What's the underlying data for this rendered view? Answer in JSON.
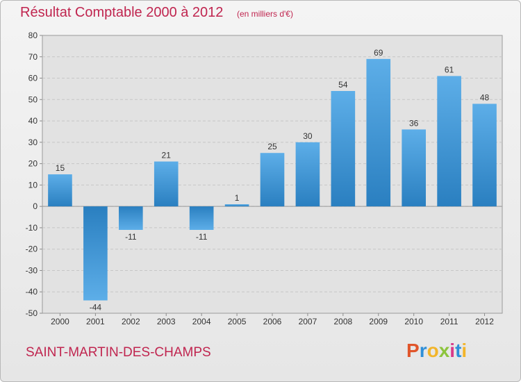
{
  "header": {
    "title": "Résultat Comptable 2000 à 2012",
    "subtitle": "(en milliers d'€)"
  },
  "footer": {
    "commune": "SAINT-MARTIN-DES-CHAMPS",
    "logo_text": "Proxiti",
    "logo_colors": [
      "#e0552a",
      "#2e8fd8",
      "#f2b52a",
      "#8cc43c",
      "#d83a8a"
    ]
  },
  "chart_data": {
    "type": "bar",
    "title": "Résultat Comptable 2000 à 2012",
    "subtitle": "(en milliers d'€)",
    "xlabel": "",
    "ylabel": "",
    "categories": [
      "2000",
      "2001",
      "2002",
      "2003",
      "2004",
      "2005",
      "2006",
      "2007",
      "2008",
      "2009",
      "2010",
      "2011",
      "2012"
    ],
    "values": [
      15,
      -44,
      -11,
      21,
      -11,
      1,
      25,
      30,
      54,
      69,
      36,
      61,
      48
    ],
    "data_labels": [
      "15",
      "-44",
      "-11",
      "21",
      "-11",
      "1",
      "25",
      "30",
      "54",
      "69",
      "36",
      "61",
      "48"
    ],
    "ylim": [
      -50,
      80
    ],
    "yticks": [
      80,
      70,
      60,
      50,
      40,
      30,
      20,
      10,
      0,
      -10,
      -20,
      -30,
      -40,
      -50
    ],
    "grid": true,
    "bar_color_top": "#5daee8",
    "bar_color_bottom": "#2a7fc0"
  }
}
